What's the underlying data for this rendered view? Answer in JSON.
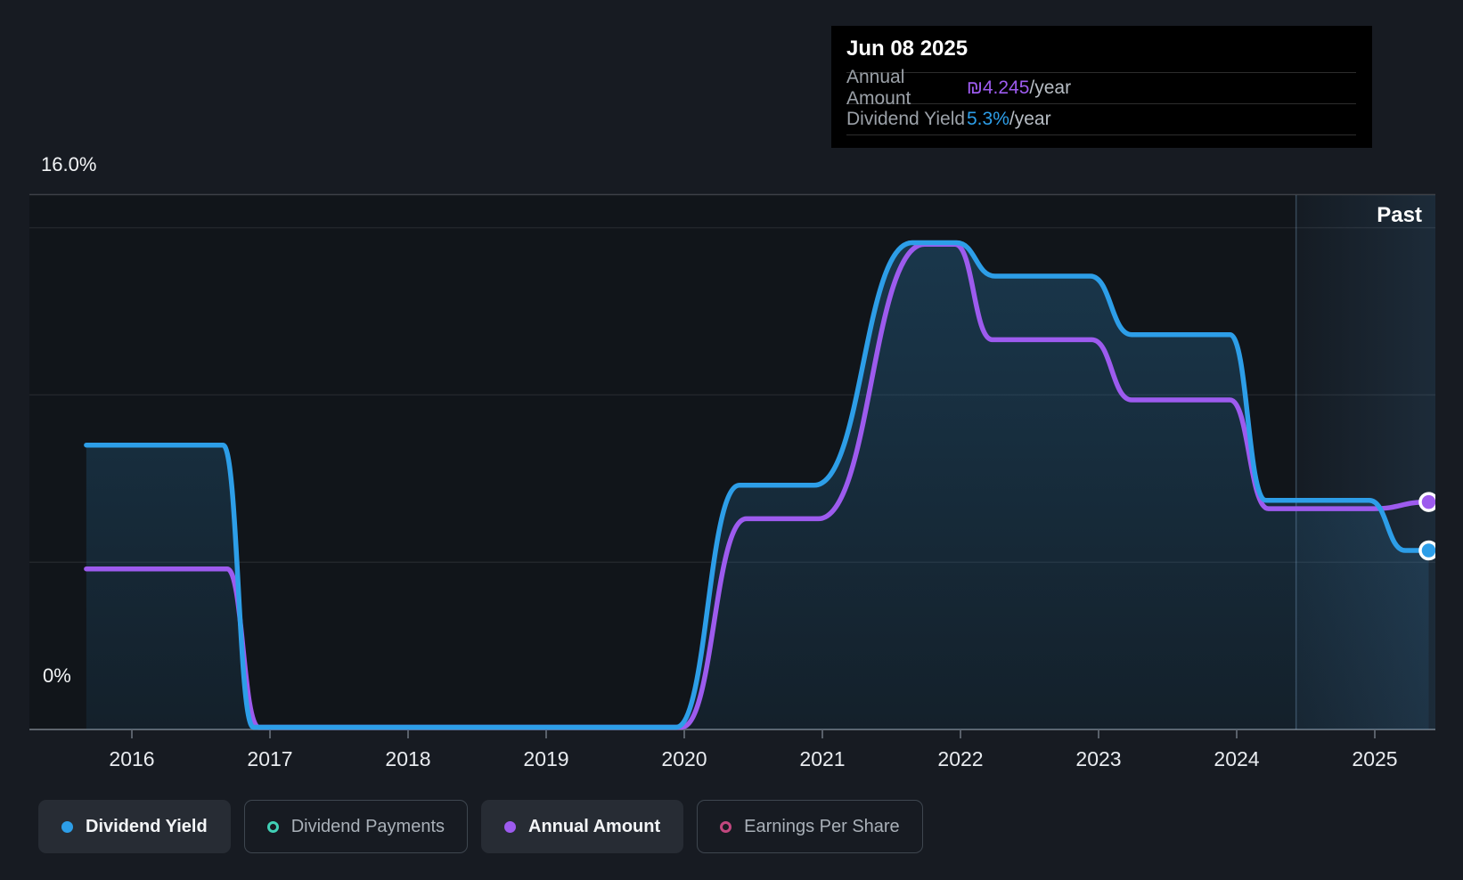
{
  "tooltip": {
    "date": "Jun 08 2025",
    "rows": [
      {
        "label": "Annual Amount",
        "value": "₪4.245",
        "suffix": "/year"
      },
      {
        "label": "Dividend Yield",
        "value": "5.3%",
        "suffix": "/year"
      }
    ]
  },
  "legend": [
    {
      "label": "Dividend Yield",
      "color": "#2D9EE8",
      "marker": "filled",
      "active": true
    },
    {
      "label": "Dividend Payments",
      "color": "#41D0B6",
      "marker": "hollow",
      "active": false
    },
    {
      "label": "Annual Amount",
      "color": "#9D5BEE",
      "marker": "filled",
      "active": true
    },
    {
      "label": "Earnings Per Share",
      "color": "#C2477F",
      "marker": "hollow",
      "active": false
    }
  ],
  "chart_data": {
    "type": "area",
    "x_axis": {
      "ticks": [
        2016,
        2017,
        2018,
        2019,
        2020,
        2021,
        2022,
        2023,
        2024,
        2025
      ],
      "range": [
        2015.26,
        2025.44
      ]
    },
    "y_axis": {
      "label_top": "16.0%",
      "label_bottom": "0%",
      "range_pct": [
        0,
        16
      ],
      "gridlines_pct": [
        5,
        10,
        15
      ],
      "grid": true
    },
    "past_region": {
      "label": "Past",
      "from_year": 2024.43,
      "to_year": 2025.44
    },
    "series": [
      {
        "name": "Dividend Yield",
        "color": "#2D9EE8",
        "fill": true,
        "end_dot": true,
        "points": [
          [
            2015.67,
            8.5
          ],
          [
            2016.66,
            8.5
          ],
          [
            2016.88,
            0
          ],
          [
            2019.94,
            0
          ],
          [
            2020.4,
            7.3
          ],
          [
            2020.94,
            7.3
          ],
          [
            2021.65,
            14.55
          ],
          [
            2021.97,
            14.55
          ],
          [
            2022.25,
            13.55
          ],
          [
            2022.94,
            13.55
          ],
          [
            2023.24,
            11.8
          ],
          [
            2023.95,
            11.8
          ],
          [
            2024.21,
            6.85
          ],
          [
            2024.96,
            6.85
          ],
          [
            2025.22,
            5.35
          ],
          [
            2025.39,
            5.35
          ]
        ]
      },
      {
        "name": "Annual Amount",
        "color": "#9D5BEE",
        "fill": false,
        "end_dot": true,
        "points": [
          [
            2015.67,
            4.8
          ],
          [
            2016.69,
            4.8
          ],
          [
            2016.92,
            0
          ],
          [
            2019.98,
            0
          ],
          [
            2020.45,
            6.3
          ],
          [
            2020.97,
            6.3
          ],
          [
            2021.74,
            14.5
          ],
          [
            2021.96,
            14.5
          ],
          [
            2022.23,
            11.65
          ],
          [
            2022.95,
            11.65
          ],
          [
            2023.24,
            9.85
          ],
          [
            2023.95,
            9.85
          ],
          [
            2024.23,
            6.6
          ],
          [
            2024.99,
            6.6
          ],
          [
            2025.39,
            6.8
          ]
        ]
      }
    ],
    "current_values": {
      "annual_amount": "₪4.245/year",
      "dividend_yield": "5.3%/year"
    }
  }
}
